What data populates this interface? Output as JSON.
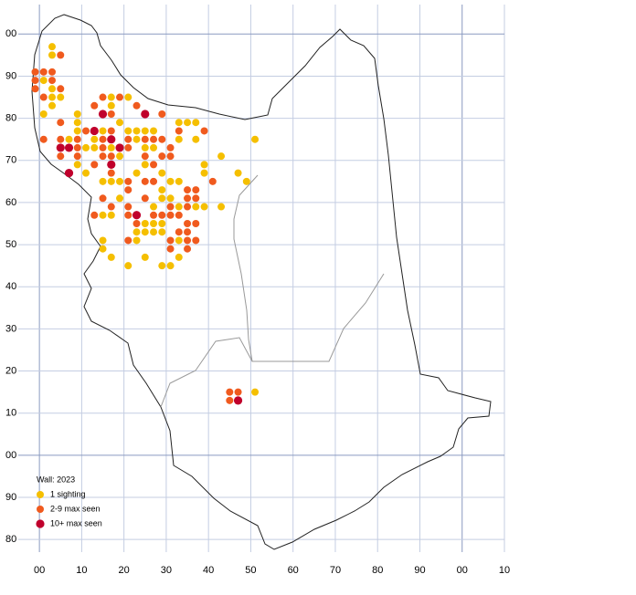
{
  "chart_data": {
    "type": "scatter",
    "legend_title": "Wall:  2023",
    "xlim": [
      -5,
      110
    ],
    "ylim": [
      -23,
      107
    ],
    "xticks": [
      {
        "value": 0,
        "label": "00"
      },
      10,
      20,
      30,
      40,
      50,
      60,
      70,
      80,
      90,
      {
        "value": 100,
        "label": "00"
      },
      {
        "value": 110,
        "label": "10"
      }
    ],
    "yticks": [
      {
        "value": 100,
        "label": "00"
      },
      90,
      80,
      70,
      60,
      50,
      40,
      30,
      20,
      10,
      {
        "value": 0,
        "label": "00"
      },
      {
        "value": -10,
        "label": "90"
      },
      {
        "value": -20,
        "label": "80"
      }
    ],
    "grid": true,
    "legend": "lower left",
    "series": [
      {
        "name": "1 sighting",
        "color": "#f5bf00",
        "x": [
          3,
          3,
          1,
          3,
          3,
          5,
          17,
          21,
          3,
          17,
          1,
          9,
          9,
          19,
          33,
          35,
          37,
          9,
          15,
          21,
          23,
          25,
          27,
          7,
          13,
          23,
          33,
          37,
          51,
          11,
          13,
          17,
          25,
          27,
          19,
          43,
          9,
          25,
          39,
          11,
          23,
          29,
          39,
          47,
          15,
          17,
          19,
          31,
          33,
          49,
          29,
          19,
          29,
          31,
          27,
          33,
          37,
          39,
          43,
          15,
          17,
          25,
          27,
          29,
          23,
          25,
          27,
          29,
          15,
          23,
          33,
          15,
          17,
          25,
          33,
          21,
          29,
          31,
          51
        ],
        "values": [
          97,
          95,
          89,
          87,
          85,
          85,
          85,
          85,
          83,
          83,
          81,
          81,
          79,
          79,
          79,
          79,
          79,
          77,
          77,
          77,
          77,
          77,
          77,
          75,
          75,
          75,
          75,
          75,
          75,
          73,
          73,
          73,
          73,
          73,
          71,
          71,
          69,
          69,
          69,
          67,
          67,
          67,
          67,
          67,
          65,
          65,
          65,
          65,
          65,
          65,
          63,
          61,
          61,
          61,
          59,
          59,
          59,
          59,
          59,
          57,
          57,
          55,
          55,
          55,
          53,
          53,
          53,
          53,
          51,
          51,
          51,
          49,
          47,
          47,
          47,
          45,
          45,
          45,
          15
        ]
      },
      {
        "name": "2-9 max seen",
        "color": "#f05a1e",
        "x": [
          5,
          -1,
          1,
          3,
          -1,
          3,
          -1,
          5,
          1,
          15,
          19,
          13,
          23,
          17,
          29,
          5,
          11,
          17,
          33,
          39,
          1,
          5,
          9,
          15,
          21,
          25,
          27,
          29,
          9,
          15,
          21,
          31,
          5,
          9,
          15,
          17,
          25,
          29,
          31,
          13,
          27,
          17,
          21,
          25,
          27,
          41,
          21,
          35,
          37,
          15,
          25,
          35,
          37,
          17,
          21,
          31,
          35,
          13,
          21,
          27,
          29,
          31,
          33,
          23,
          35,
          37,
          33,
          35,
          21,
          31,
          35,
          37,
          31,
          35,
          45,
          47,
          45
        ],
        "values": [
          95,
          91,
          91,
          91,
          89,
          89,
          87,
          87,
          85,
          85,
          85,
          83,
          83,
          81,
          81,
          79,
          77,
          77,
          77,
          77,
          75,
          75,
          75,
          75,
          75,
          75,
          75,
          75,
          73,
          73,
          73,
          73,
          71,
          71,
          71,
          71,
          71,
          71,
          71,
          69,
          69,
          67,
          65,
          65,
          65,
          65,
          63,
          63,
          63,
          61,
          61,
          61,
          61,
          59,
          59,
          59,
          59,
          57,
          57,
          57,
          57,
          57,
          57,
          55,
          55,
          55,
          53,
          53,
          51,
          51,
          51,
          51,
          49,
          49,
          15,
          15,
          13
        ]
      },
      {
        "name": "10+ max seen",
        "color": "#c0002c",
        "x": [
          15,
          25,
          13,
          17,
          5,
          7,
          19,
          17,
          7,
          23,
          47
        ],
        "values": [
          81,
          81,
          77,
          75,
          73,
          73,
          73,
          69,
          67,
          57,
          13
        ]
      }
    ]
  }
}
